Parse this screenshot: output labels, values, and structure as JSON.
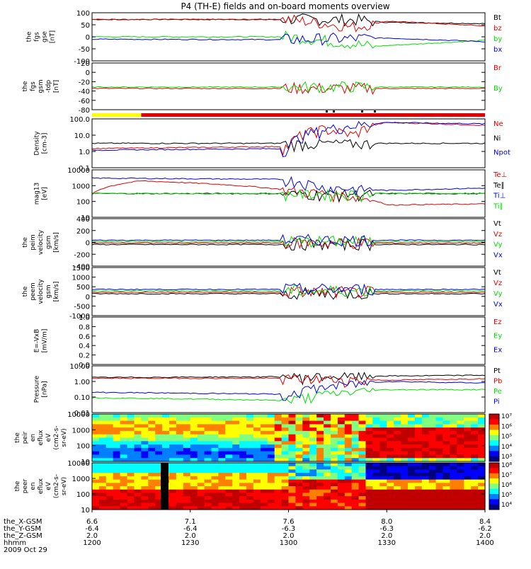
{
  "title": "P4 (TH-E) fields and on-board moments overview",
  "colors": {
    "black": "#000000",
    "red": "#e00000",
    "green": "#00e000",
    "blue": "#0000e0",
    "yellow": "#ffff00"
  },
  "panels": [
    {
      "key": "fgs_gse",
      "ylabel": [
        "the",
        "fgs",
        "gse",
        "[nT]"
      ],
      "ticks": [
        "100",
        "50",
        "0",
        "-50",
        "-100"
      ],
      "ylim": [
        -100,
        100
      ],
      "legend": [
        {
          "text": "Bt",
          "color": "black"
        },
        {
          "text": "bz",
          "color": "red"
        },
        {
          "text": "by",
          "color": "green"
        },
        {
          "text": "bx",
          "color": "blue"
        }
      ]
    },
    {
      "key": "fgs_gsm",
      "ylabel": [
        "the",
        "fgs",
        "gsm",
        "-tdp",
        "[nT]"
      ],
      "ticks": [
        "20",
        "0",
        "-20",
        "-40",
        "-60",
        "-80"
      ],
      "ylim": [
        -80,
        30
      ],
      "legend": [
        {
          "text": "Br",
          "color": "red"
        },
        {
          "text": "By",
          "color": "green"
        }
      ]
    },
    {
      "key": "density",
      "ylabel": [
        "Density",
        "[cm-3]"
      ],
      "ticks": [
        "100.0",
        "10.0",
        "1.0",
        "0.1"
      ],
      "scale": "log",
      "ylim": [
        0.1,
        100
      ],
      "legend": [
        {
          "text": "Ne",
          "color": "red"
        },
        {
          "text": "Ni",
          "color": "black"
        },
        {
          "text": "Npot",
          "color": "blue"
        }
      ]
    },
    {
      "key": "temperature",
      "ylabel": [
        "mag13",
        "[eV]"
      ],
      "ticks": [
        "10000",
        "1000",
        "100",
        "10"
      ],
      "scale": "log",
      "ylim": [
        10,
        10000
      ],
      "legend": [
        {
          "text": "Te⊥",
          "color": "red"
        },
        {
          "text": "Te∥",
          "color": "black"
        },
        {
          "text": "Ti⊥",
          "color": "blue"
        },
        {
          "text": "Ti∥",
          "color": "green"
        }
      ]
    },
    {
      "key": "peim_velocity",
      "ylabel": [
        "the",
        "peim",
        "velocity",
        "gsm",
        "[km/s]"
      ],
      "ticks": [
        "400",
        "200",
        "0",
        "-200",
        "-400"
      ],
      "ylim": [
        -400,
        400
      ],
      "legend": [
        {
          "text": "Vt",
          "color": "black"
        },
        {
          "text": "Vz",
          "color": "red"
        },
        {
          "text": "Vy",
          "color": "green"
        },
        {
          "text": "Vx",
          "color": "blue"
        }
      ]
    },
    {
      "key": "peem_velocity",
      "ylabel": [
        "the",
        "peem",
        "velocity",
        "gsm",
        "[km/s]"
      ],
      "ticks": [
        "1500",
        "1000",
        "500",
        "0",
        "-500",
        "-1000"
      ],
      "ylim": [
        -1000,
        1500
      ],
      "legend": [
        {
          "text": "Vt",
          "color": "black"
        },
        {
          "text": "Vz",
          "color": "red"
        },
        {
          "text": "Vy",
          "color": "green"
        },
        {
          "text": "Vx",
          "color": "blue"
        }
      ]
    },
    {
      "key": "efield",
      "ylabel": [
        "E=-VxB",
        "[mV/m]"
      ],
      "ticks": [
        "1.0",
        "0.8",
        "0.6",
        "0.4",
        "0.2",
        "0.0"
      ],
      "ylim": [
        0,
        1
      ],
      "legend": [
        {
          "text": "Ez",
          "color": "red"
        },
        {
          "text": "Ey",
          "color": "green"
        },
        {
          "text": "Ex",
          "color": "blue"
        }
      ]
    },
    {
      "key": "pressure",
      "ylabel": [
        "Pressure",
        "[nPa]"
      ],
      "ticks": [
        "10.00",
        "1.00",
        "0.10",
        "0.01"
      ],
      "scale": "log",
      "ylim": [
        0.01,
        10
      ],
      "legend": [
        {
          "text": "Pt",
          "color": "black"
        },
        {
          "text": "Pb",
          "color": "red"
        },
        {
          "text": "Pe",
          "color": "green"
        },
        {
          "text": "Pi",
          "color": "blue"
        }
      ]
    },
    {
      "key": "peir_spec",
      "ylabel": [
        "the",
        "peir",
        "en",
        "eflux",
        "eV",
        "(cm2-s-",
        "sr-eV)"
      ],
      "ticks": [
        "10000",
        "1000",
        "100",
        "10"
      ],
      "colorbar": [
        "10⁷",
        "10⁶",
        "10⁵",
        "10⁴",
        "10³"
      ]
    },
    {
      "key": "peer_spec",
      "ylabel": [
        "the",
        "peer",
        "en",
        "eflux",
        "eV",
        "(cm2-s-",
        "sr-eV)"
      ],
      "ticks": [
        "10000",
        "1000",
        "100",
        "10"
      ],
      "colorbar": [
        "10⁸",
        "10⁷",
        "10⁶",
        "10⁵",
        "10⁴"
      ]
    }
  ],
  "xaxis": {
    "row_labels": [
      "the_X-GSM",
      "the_Y-GSM",
      "the_Z-GSM",
      "hhmm",
      "2009 Oct 29"
    ],
    "columns": [
      {
        "values": [
          "6.6",
          "-6.4",
          "2.0",
          "1200"
        ]
      },
      {
        "values": [
          "7.1",
          "-6.4",
          "2.0",
          "1230"
        ]
      },
      {
        "values": [
          "7.6",
          "-6.3",
          "2.0",
          "1300"
        ]
      },
      {
        "values": [
          "8.0",
          "-6.3",
          "2.0",
          "1330"
        ]
      },
      {
        "values": [
          "8.4",
          "-6.2",
          "2.0",
          "1400"
        ]
      }
    ]
  },
  "chart_data": {
    "type": "line",
    "title": "P4 (TH-E) fields and on-board moments overview",
    "x": {
      "label": "hhmm",
      "range": [
        "1200",
        "1400"
      ],
      "ticks": [
        "1200",
        "1230",
        "1300",
        "1330",
        "1400"
      ]
    },
    "mode_bar": [
      {
        "from": "1200",
        "to": "1215",
        "color": "yellow"
      },
      {
        "from": "1215",
        "to": "1400",
        "color": "red"
      }
    ],
    "series_summary": [
      {
        "panel": "fgs_gse",
        "name": "Bt",
        "approx": [
          [
            1200,
            72
          ],
          [
            1300,
            72
          ],
          [
            1320,
            70
          ],
          [
            1330,
            60
          ],
          [
            1400,
            55
          ]
        ]
      },
      {
        "panel": "fgs_gse",
        "name": "bz",
        "approx": [
          [
            1200,
            72
          ],
          [
            1300,
            72
          ],
          [
            1320,
            40
          ],
          [
            1330,
            65
          ],
          [
            1400,
            45
          ]
        ]
      },
      {
        "panel": "fgs_gse",
        "name": "by",
        "approx": [
          [
            1200,
            0
          ],
          [
            1300,
            0
          ],
          [
            1320,
            -30
          ],
          [
            1325,
            -40
          ],
          [
            1400,
            -15
          ]
        ]
      },
      {
        "panel": "fgs_gse",
        "name": "bx",
        "approx": [
          [
            1200,
            -10
          ],
          [
            1300,
            -12
          ],
          [
            1330,
            -5
          ],
          [
            1400,
            -20
          ]
        ]
      },
      {
        "panel": "density",
        "name": "Ne",
        "approx": [
          [
            1200,
            1.5
          ],
          [
            1300,
            2
          ],
          [
            1310,
            25
          ],
          [
            1320,
            10
          ],
          [
            1330,
            60
          ],
          [
            1400,
            40
          ]
        ]
      },
      {
        "panel": "density",
        "name": "Npot",
        "approx": [
          [
            1200,
            1.2
          ],
          [
            1300,
            1.5
          ],
          [
            1330,
            60
          ],
          [
            1400,
            50
          ]
        ]
      },
      {
        "panel": "temperature",
        "name": "Ti⊥",
        "approx": [
          [
            1200,
            3000
          ],
          [
            1300,
            2500
          ],
          [
            1310,
            800
          ],
          [
            1330,
            500
          ],
          [
            1400,
            700
          ]
        ]
      },
      {
        "panel": "temperature",
        "name": "Te⊥",
        "approx": [
          [
            1200,
            300
          ],
          [
            1215,
            2000
          ],
          [
            1300,
            500
          ],
          [
            1330,
            60
          ],
          [
            1400,
            70
          ]
        ]
      },
      {
        "panel": "pressure",
        "name": "Pt",
        "approx": [
          [
            1200,
            1.8
          ],
          [
            1300,
            2
          ],
          [
            1400,
            2.5
          ]
        ]
      },
      {
        "panel": "pressure",
        "name": "Pb",
        "approx": [
          [
            1200,
            1.6
          ],
          [
            1300,
            1.6
          ],
          [
            1330,
            1.2
          ],
          [
            1400,
            1.5
          ]
        ]
      },
      {
        "panel": "pressure",
        "name": "Pi",
        "approx": [
          [
            1200,
            0.2
          ],
          [
            1300,
            0.15
          ],
          [
            1330,
            1.0
          ],
          [
            1400,
            0.8
          ]
        ]
      },
      {
        "panel": "pressure",
        "name": "Pe",
        "approx": [
          [
            1200,
            0.09
          ],
          [
            1300,
            0.06
          ],
          [
            1330,
            0.3
          ],
          [
            1400,
            0.3
          ]
        ]
      }
    ]
  }
}
